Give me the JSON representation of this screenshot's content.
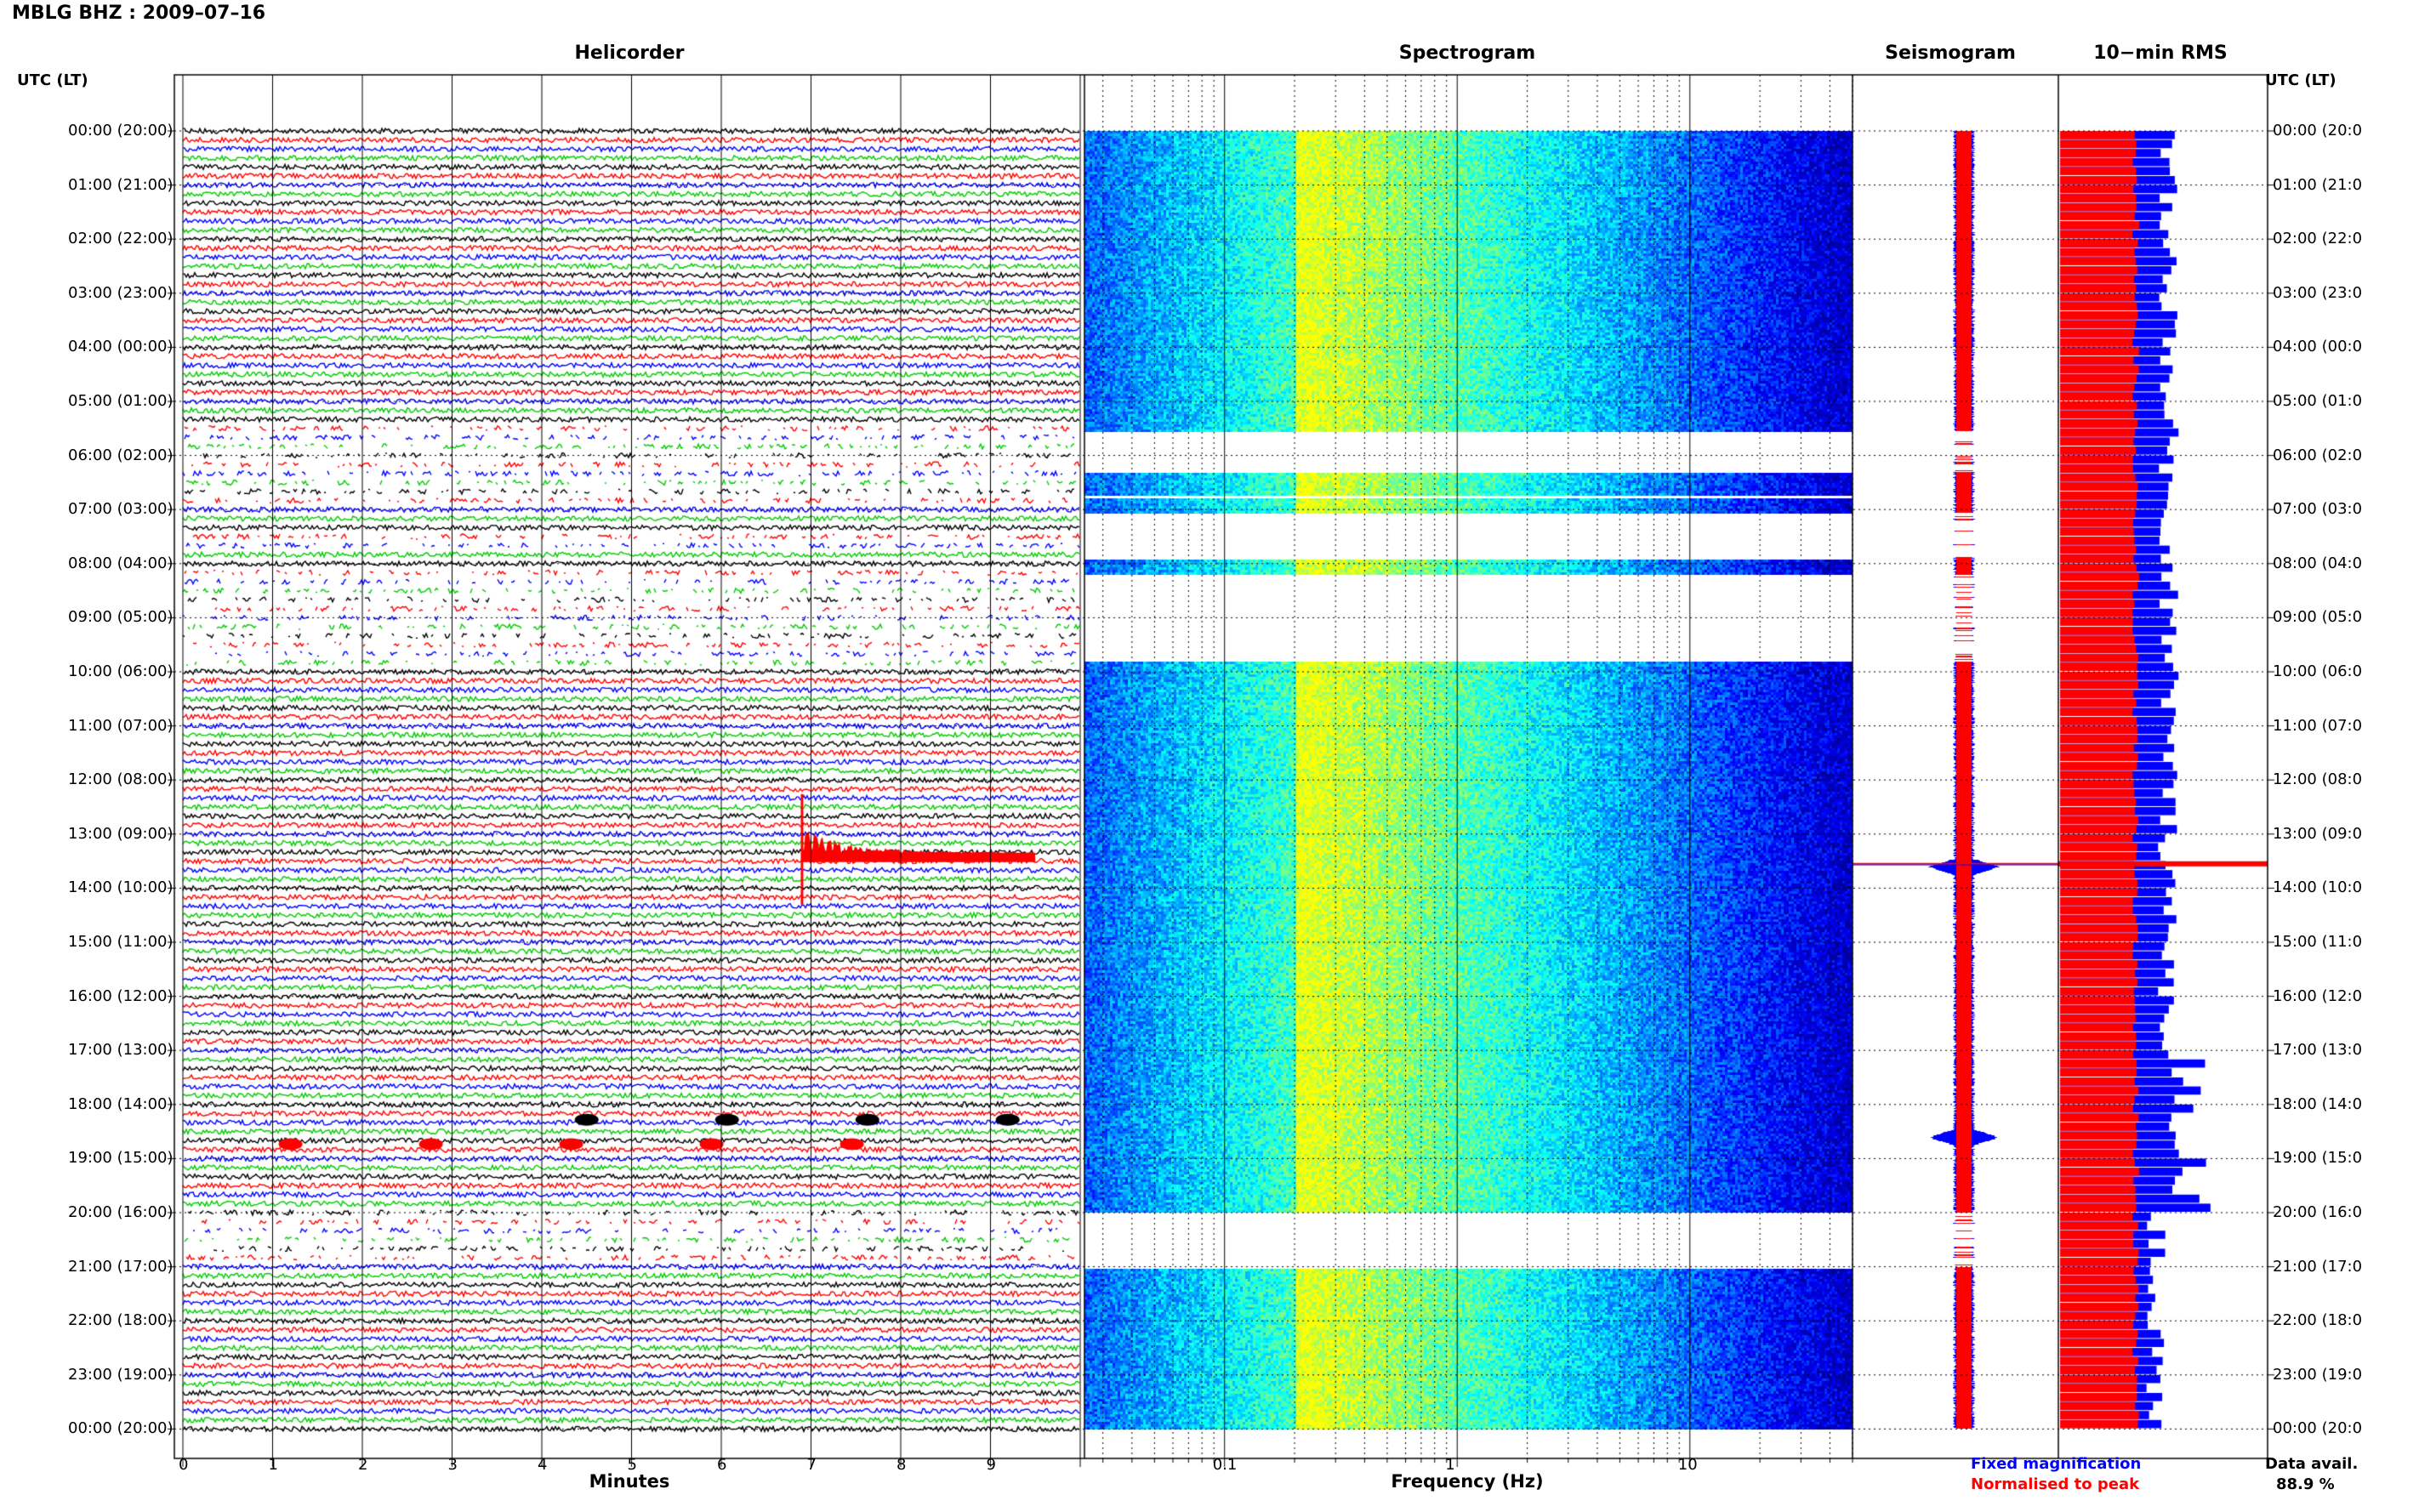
{
  "title": "MBLG BHZ : 2009–07–16",
  "panels": {
    "helicorder": "Helicorder",
    "spectrogram": "Spectrogram",
    "seismogram": "Seismogram",
    "rms": "10−min RMS"
  },
  "axis": {
    "time_header_left": "UTC (LT)",
    "time_header_right": "UTC (LT)",
    "helicorder_xlabel": "Minutes",
    "spectrogram_xlabel": "Frequency (Hz)"
  },
  "legend": {
    "fixed": "Fixed magnification",
    "normalised": "Normalised to peak",
    "colors": {
      "fixed": "#0000ff",
      "normalised": "#ff0000"
    }
  },
  "data_availability": {
    "label": "Data avail.",
    "value": "88.9 %"
  },
  "chart_data": {
    "type": "helicorder-spectrogram",
    "station": "MBLG",
    "channel": "BHZ",
    "date": "2009-07-16",
    "time_labels_left": [
      "00:00 (20:00)",
      "01:00 (21:00)",
      "02:00 (22:00)",
      "03:00 (23:00)",
      "04:00 (00:00)",
      "05:00 (01:00)",
      "06:00 (02:00)",
      "07:00 (03:00)",
      "08:00 (04:00)",
      "09:00 (05:00)",
      "10:00 (06:00)",
      "11:00 (07:00)",
      "12:00 (08:00)",
      "13:00 (09:00)",
      "14:00 (10:00)",
      "15:00 (11:00)",
      "16:00 (12:00)",
      "17:00 (13:00)",
      "18:00 (14:00)",
      "19:00 (15:00)",
      "20:00 (16:00)",
      "21:00 (17:00)",
      "22:00 (18:00)",
      "23:00 (19:00)",
      "00:00 (20:00)"
    ],
    "time_labels_right": [
      "00:00 (20:0",
      "01:00 (21:0",
      "02:00 (22:0",
      "03:00 (23:0",
      "04:00 (00:0",
      "05:00 (01:0",
      "06:00 (02:0",
      "07:00 (03:0",
      "08:00 (04:0",
      "09:00 (05:0",
      "10:00 (06:0",
      "11:00 (07:0",
      "12:00 (08:0",
      "13:00 (09:0",
      "14:00 (10:0",
      "15:00 (11:0",
      "16:00 (12:0",
      "17:00 (13:0",
      "18:00 (14:0",
      "19:00 (15:0",
      "20:00 (16:0",
      "21:00 (17:0",
      "22:00 (18:0",
      "23:00 (19:0",
      "00:00 (20:0"
    ],
    "helicorder": {
      "x_ticks": [
        "0",
        "1",
        "2",
        "3",
        "4",
        "5",
        "6",
        "7",
        "8",
        "9"
      ],
      "xlim_minutes": [
        0,
        10
      ],
      "lines_per_hour": 6,
      "trace_colors": [
        "#000000",
        "#ff0000",
        "#0000ff",
        "#00cc00"
      ],
      "gaps_hours": [
        [
          5.5,
          6.9
        ],
        [
          7.45,
          7.8
        ],
        [
          8.1,
          9.9
        ],
        [
          20.0,
          21.0
        ]
      ],
      "events": [
        {
          "time_hours": 13.0,
          "start_minute": 6.9,
          "color": "#ff0000",
          "note": "large event"
        },
        {
          "time_hours": 18.45,
          "start_minute": 1.2,
          "color": "#ff0000"
        },
        {
          "time_hours": 18.0,
          "start_minute": 4.5,
          "color": "#000000"
        }
      ]
    },
    "spectrogram": {
      "x_scale": "log",
      "x_ticks": [
        "0.1",
        "1",
        "10"
      ],
      "xlim_hz": [
        0.025,
        50
      ],
      "colormap": [
        "#00008f",
        "#0000ff",
        "#0080ff",
        "#00ffff",
        "#80ff80",
        "#ffff00"
      ],
      "peak_band_hz": [
        0.2,
        0.35
      ],
      "gaps_hours": [
        [
          5.55,
          6.3
        ],
        [
          6.7,
          6.75
        ],
        [
          7.05,
          7.9
        ],
        [
          8.2,
          9.8
        ],
        [
          20.0,
          21.0
        ]
      ]
    },
    "seismogram": {
      "legend": [
        "Fixed magnification",
        "Normalised to peak"
      ],
      "event_hours": [
        13.6,
        18.6
      ]
    },
    "rms_10min": {
      "series": [
        {
          "name": "Fixed magnification",
          "color": "#0000ff"
        },
        {
          "name": "Normalised to peak",
          "color": "#ff0000"
        }
      ],
      "peak_hour": 13.55,
      "secondary_peaks_hours": [
        18.0,
        18.5,
        18.8,
        19.8
      ]
    },
    "data_available_percent": 88.9
  }
}
